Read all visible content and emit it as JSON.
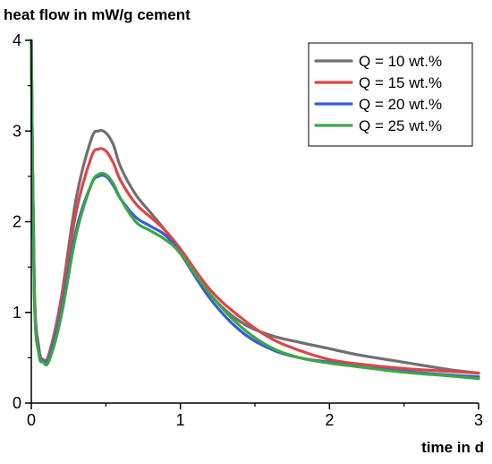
{
  "chart_data": {
    "type": "line",
    "ylabel": "heat flow in mW/g cement",
    "xlabel": "time in d",
    "xlim": [
      0,
      3
    ],
    "ylim": [
      0,
      4
    ],
    "x_ticks": [
      "0",
      "1",
      "2",
      "3"
    ],
    "y_ticks": [
      "0",
      "1",
      "2",
      "3",
      "4"
    ],
    "legend_position": "top-right",
    "grid": false,
    "series": [
      {
        "name": "Q = 10 wt.%",
        "color": "#707070",
        "x": [
          0.0,
          0.02,
          0.05,
          0.08,
          0.12,
          0.2,
          0.3,
          0.4,
          0.45,
          0.5,
          0.55,
          0.6,
          0.7,
          0.8,
          0.9,
          1.0,
          1.2,
          1.4,
          1.6,
          1.8,
          2.0,
          2.2,
          2.5,
          2.8,
          3.0
        ],
        "y": [
          4.0,
          1.3,
          0.62,
          0.48,
          0.55,
          1.15,
          2.25,
          2.9,
          3.0,
          2.98,
          2.85,
          2.6,
          2.3,
          2.1,
          1.9,
          1.68,
          1.2,
          0.9,
          0.75,
          0.67,
          0.6,
          0.53,
          0.45,
          0.37,
          0.33
        ]
      },
      {
        "name": "Q = 15 wt.%",
        "color": "#e04545",
        "x": [
          0.0,
          0.02,
          0.05,
          0.08,
          0.12,
          0.2,
          0.3,
          0.4,
          0.45,
          0.5,
          0.55,
          0.6,
          0.7,
          0.8,
          0.9,
          1.0,
          1.2,
          1.4,
          1.6,
          1.8,
          2.0,
          2.2,
          2.5,
          2.8,
          3.0
        ],
        "y": [
          4.0,
          1.3,
          0.6,
          0.47,
          0.53,
          1.1,
          2.1,
          2.7,
          2.8,
          2.78,
          2.65,
          2.45,
          2.2,
          2.05,
          1.9,
          1.7,
          1.25,
          0.95,
          0.72,
          0.58,
          0.48,
          0.43,
          0.38,
          0.35,
          0.33
        ]
      },
      {
        "name": "Q = 20 wt.%",
        "color": "#3a5bd9",
        "x": [
          0.0,
          0.02,
          0.05,
          0.08,
          0.12,
          0.2,
          0.3,
          0.4,
          0.45,
          0.5,
          0.55,
          0.6,
          0.7,
          0.8,
          0.9,
          1.0,
          1.2,
          1.4,
          1.6,
          1.8,
          2.0,
          2.2,
          2.5,
          2.8,
          3.0
        ],
        "y": [
          4.0,
          1.25,
          0.58,
          0.46,
          0.5,
          1.0,
          1.9,
          2.4,
          2.5,
          2.5,
          2.4,
          2.25,
          2.05,
          1.95,
          1.85,
          1.65,
          1.15,
          0.8,
          0.6,
          0.5,
          0.45,
          0.4,
          0.35,
          0.31,
          0.29
        ]
      },
      {
        "name": "Q = 25 wt.%",
        "color": "#3aa845",
        "x": [
          0.0,
          0.02,
          0.05,
          0.08,
          0.12,
          0.2,
          0.3,
          0.4,
          0.45,
          0.5,
          0.55,
          0.6,
          0.7,
          0.8,
          0.9,
          1.0,
          1.2,
          1.4,
          1.6,
          1.8,
          2.0,
          2.2,
          2.5,
          2.8,
          3.0
        ],
        "y": [
          4.0,
          1.2,
          0.55,
          0.45,
          0.47,
          0.95,
          1.85,
          2.4,
          2.52,
          2.52,
          2.42,
          2.25,
          2.0,
          1.9,
          1.8,
          1.65,
          1.2,
          0.85,
          0.62,
          0.5,
          0.44,
          0.4,
          0.34,
          0.3,
          0.27
        ]
      }
    ]
  }
}
